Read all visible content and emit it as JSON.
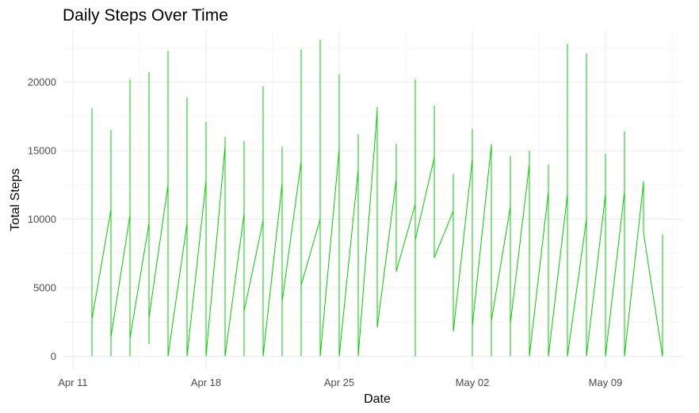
{
  "chart_data": {
    "type": "line",
    "title": "Daily Steps Over Time",
    "xlabel": "Date",
    "ylabel": "Total Steps",
    "x_tick_labels": [
      "Apr 11",
      "Apr 18",
      "Apr 25",
      "May 02",
      "May 09"
    ],
    "y_tick_labels": [
      "0",
      "5000",
      "10000",
      "15000",
      "20000"
    ],
    "y_ticks": [
      0,
      5000,
      10000,
      15000,
      20000
    ],
    "ylim": [
      -900,
      23800
    ],
    "xlim": [
      "2016-04-10",
      "2016-05-13"
    ],
    "grid": true,
    "line_color": "#00cc00",
    "series": [
      {
        "values": [
          {
            "date": "2016-04-12",
            "steps": [
              0,
              18100,
              2700
            ]
          },
          {
            "date": "2016-04-13",
            "steps": [
              10700,
              16500,
              0,
              1400
            ]
          },
          {
            "date": "2016-04-14",
            "steps": [
              10300,
              20200,
              0,
              1300
            ]
          },
          {
            "date": "2016-04-15",
            "steps": [
              9700,
              20750,
              900,
              2800
            ]
          },
          {
            "date": "2016-04-16",
            "steps": [
              12500,
              22300,
              0
            ]
          },
          {
            "date": "2016-04-17",
            "steps": [
              9700,
              18900,
              0
            ]
          },
          {
            "date": "2016-04-18",
            "steps": [
              12800,
              17100,
              0
            ]
          },
          {
            "date": "2016-04-19",
            "steps": [
              15300,
              16000,
              0
            ]
          },
          {
            "date": "2016-04-20",
            "steps": [
              10400,
              15700,
              0,
              3300
            ]
          },
          {
            "date": "2016-04-21",
            "steps": [
              9900,
              19700,
              0
            ]
          },
          {
            "date": "2016-04-22",
            "steps": [
              12600,
              15300,
              0,
              4000
            ]
          },
          {
            "date": "2016-04-23",
            "steps": [
              14200,
              22400,
              0,
              5200
            ]
          },
          {
            "date": "2016-04-24",
            "steps": [
              10000,
              23100,
              0
            ]
          },
          {
            "date": "2016-04-25",
            "steps": [
              15100,
              20600,
              0
            ]
          },
          {
            "date": "2016-04-26",
            "steps": [
              13600,
              16200,
              0
            ]
          },
          {
            "date": "2016-04-27",
            "steps": [
              17900,
              18200,
              2100
            ]
          },
          {
            "date": "2016-04-28",
            "steps": [
              12900,
              15500,
              6200
            ]
          },
          {
            "date": "2016-04-29",
            "steps": [
              11100,
              20200,
              0,
              8500
            ]
          },
          {
            "date": "2016-04-30",
            "steps": [
              14500,
              18300,
              7200
            ]
          },
          {
            "date": "2016-05-01",
            "steps": [
              10600,
              13300,
              1800
            ]
          },
          {
            "date": "2016-05-02",
            "steps": [
              14400,
              16600,
              0,
              2200
            ]
          },
          {
            "date": "2016-05-03",
            "steps": [
              15400,
              15500,
              0,
              2600
            ]
          },
          {
            "date": "2016-05-04",
            "steps": [
              10900,
              14600,
              0,
              2400
            ]
          },
          {
            "date": "2016-05-05",
            "steps": [
              14000,
              15000,
              0
            ]
          },
          {
            "date": "2016-05-06",
            "steps": [
              12000,
              14000,
              0
            ]
          },
          {
            "date": "2016-05-07",
            "steps": [
              11800,
              22800,
              0
            ]
          },
          {
            "date": "2016-05-08",
            "steps": [
              10000,
              22100,
              0
            ]
          },
          {
            "date": "2016-05-09",
            "steps": [
              11800,
              14800,
              0
            ]
          },
          {
            "date": "2016-05-10",
            "steps": [
              12000,
              16400,
              0
            ]
          },
          {
            "date": "2016-05-11",
            "steps": [
              12700,
              12800,
              9000
            ]
          },
          {
            "date": "2016-05-12",
            "steps": [
              0,
              8900
            ]
          }
        ]
      }
    ]
  }
}
